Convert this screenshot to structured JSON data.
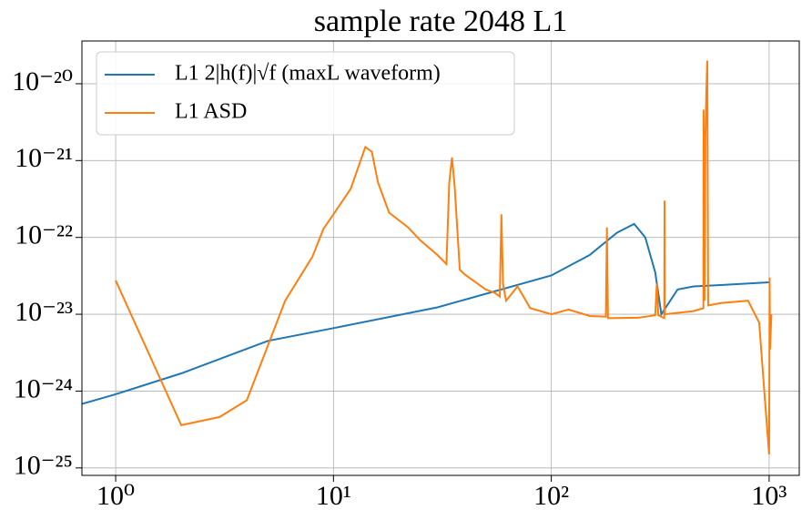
{
  "chart_data": {
    "type": "line",
    "title": "sample rate 2048 L1",
    "xscale": "log",
    "yscale": "log",
    "grid": true,
    "legend": "upper left",
    "xlim": [
      0.7,
      1375
    ],
    "ylim": [
      8e-26,
      3.6e-20
    ],
    "xticks": [
      {
        "value": 1,
        "label": "10⁰"
      },
      {
        "value": 10,
        "label": "10¹"
      },
      {
        "value": 100,
        "label": "10²"
      },
      {
        "value": 1000,
        "label": "10³"
      }
    ],
    "yticks": [
      {
        "value": 1e-25,
        "label": "10⁻²⁵"
      },
      {
        "value": 1e-24,
        "label": "10⁻²⁴"
      },
      {
        "value": 1e-23,
        "label": "10⁻²³"
      },
      {
        "value": 1e-22,
        "label": "10⁻²²"
      },
      {
        "value": 1e-21,
        "label": "10⁻²¹"
      },
      {
        "value": 1e-20,
        "label": "10⁻²⁰"
      }
    ],
    "series": [
      {
        "name": "L1 2|h(f)|√f (maxL waveform)",
        "color": "#1f77b4",
        "x": [
          0.7,
          1,
          2,
          5,
          10,
          30,
          100,
          150,
          200,
          240,
          270,
          300,
          320,
          340,
          380,
          450,
          600,
          1000
        ],
        "values": [
          6.8e-25,
          9.1e-25,
          1.7e-24,
          4.5e-24,
          6.6e-24,
          1.23e-23,
          3.2e-23,
          5.9e-23,
          1.15e-22,
          1.5e-22,
          1e-22,
          3.5e-23,
          1e-23,
          1.3e-23,
          2.1e-23,
          2.3e-23,
          2.4e-23,
          2.6e-23
        ]
      },
      {
        "name": "L1 ASD",
        "color": "#ff7f0e",
        "x": [
          1,
          2,
          3,
          4,
          6,
          8,
          9,
          10,
          12,
          14,
          15,
          16,
          18,
          22,
          25,
          30,
          33,
          34,
          35,
          36,
          38,
          40,
          50,
          55,
          58,
          59,
          60,
          62,
          70,
          80,
          100,
          120,
          150,
          178,
          180,
          182,
          250,
          300,
          305,
          310,
          330,
          331,
          332,
          450,
          499,
          500,
          505,
          510,
          515,
          520,
          525,
          600,
          800,
          900,
          950,
          1000,
          1005,
          1010,
          1024
        ],
        "values": [
          2.75e-23,
          3.6e-25,
          4.6e-25,
          7.6e-25,
          1.5e-23,
          5.6e-23,
          1.3e-22,
          2e-22,
          4.3e-22,
          1.5e-21,
          1.3e-21,
          5.2e-22,
          2.1e-22,
          1.35e-22,
          9.2e-23,
          5.9e-23,
          4.5e-23,
          5.2e-22,
          1.1e-21,
          4.6e-22,
          3.8e-23,
          3.3e-23,
          2.1e-23,
          1.9e-23,
          1.7e-23,
          2e-22,
          2.5e-23,
          1.5e-23,
          2.3e-23,
          1.2e-23,
          1e-23,
          1.15e-23,
          9.5e-24,
          9.3e-24,
          1.35e-22,
          8.9e-24,
          9e-24,
          9.7e-24,
          2.5e-23,
          9.7e-24,
          8.9e-24,
          3e-22,
          1e-23,
          1.1e-23,
          1.2e-23,
          4.6e-21,
          1.5e-23,
          2.1e-21,
          8e-21,
          2e-20,
          1.3e-23,
          1.4e-23,
          1.5e-23,
          7.8e-24,
          1e-24,
          1.5e-25,
          3e-23,
          3.5e-24,
          1e-23
        ]
      }
    ]
  }
}
